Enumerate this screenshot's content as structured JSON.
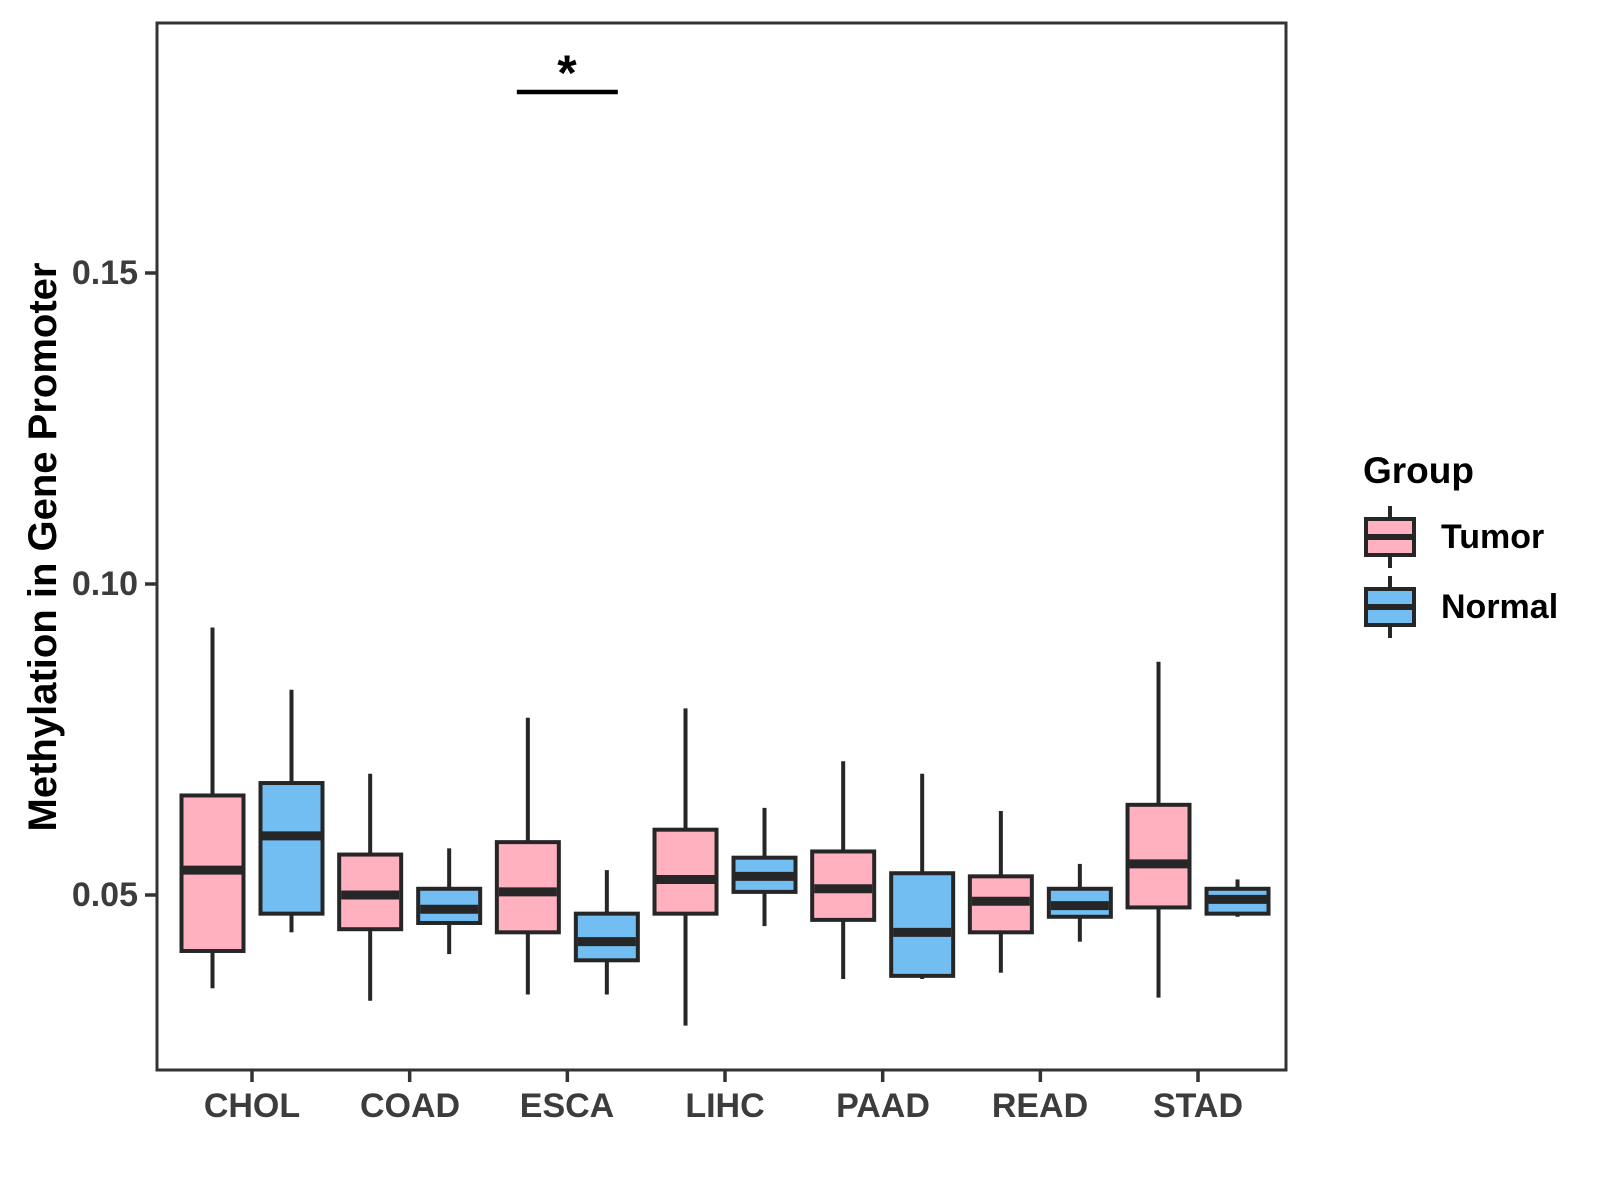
{
  "chart_data": {
    "type": "boxplot",
    "title": "",
    "xlabel": "",
    "ylabel": "Methylation in Gene Promoter",
    "categories": [
      "CHOL",
      "COAD",
      "ESCA",
      "LIHC",
      "PAAD",
      "READ",
      "STAD"
    ],
    "y_tick_labels": [
      "0.15",
      "0.10",
      "0.05"
    ],
    "y_tick_values": [
      0.15,
      0.1,
      0.05
    ],
    "ylim": [
      0.021,
      0.19
    ],
    "grid": false,
    "legend": {
      "title": "Group",
      "position": "right"
    },
    "groups": [
      {
        "name": "Tumor",
        "fill": "#FFB1C0"
      },
      {
        "name": "Normal",
        "fill": "#72BDF2"
      }
    ],
    "series": [
      {
        "name": "Tumor",
        "boxes": [
          {
            "category": "CHOL",
            "whislo": 0.035,
            "q1": 0.041,
            "med": 0.054,
            "q3": 0.066,
            "whishi": 0.093
          },
          {
            "category": "COAD",
            "whislo": 0.033,
            "q1": 0.0445,
            "med": 0.05,
            "q3": 0.0565,
            "whishi": 0.0695
          },
          {
            "category": "ESCA",
            "whislo": 0.034,
            "q1": 0.044,
            "med": 0.0505,
            "q3": 0.0585,
            "whishi": 0.0785
          },
          {
            "category": "LIHC",
            "whislo": 0.029,
            "q1": 0.047,
            "med": 0.0525,
            "q3": 0.0605,
            "whishi": 0.08
          },
          {
            "category": "PAAD",
            "whislo": 0.0365,
            "q1": 0.046,
            "med": 0.051,
            "q3": 0.057,
            "whishi": 0.0715
          },
          {
            "category": "READ",
            "whislo": 0.0375,
            "q1": 0.044,
            "med": 0.049,
            "q3": 0.053,
            "whishi": 0.0635
          },
          {
            "category": "STAD",
            "whislo": 0.0335,
            "q1": 0.048,
            "med": 0.055,
            "q3": 0.0645,
            "whishi": 0.0875
          }
        ]
      },
      {
        "name": "Normal",
        "boxes": [
          {
            "category": "CHOL",
            "whislo": 0.044,
            "q1": 0.047,
            "med": 0.0595,
            "q3": 0.068,
            "whishi": 0.083
          },
          {
            "category": "COAD",
            "whislo": 0.0405,
            "q1": 0.0455,
            "med": 0.0477,
            "q3": 0.051,
            "whishi": 0.0575
          },
          {
            "category": "ESCA",
            "whislo": 0.034,
            "q1": 0.0395,
            "med": 0.0425,
            "q3": 0.047,
            "whishi": 0.054
          },
          {
            "category": "LIHC",
            "whislo": 0.045,
            "q1": 0.0505,
            "med": 0.053,
            "q3": 0.056,
            "whishi": 0.064
          },
          {
            "category": "PAAD",
            "whislo": 0.0365,
            "q1": 0.037,
            "med": 0.044,
            "q3": 0.0535,
            "whishi": 0.0695
          },
          {
            "category": "READ",
            "whislo": 0.0425,
            "q1": 0.0465,
            "med": 0.0483,
            "q3": 0.051,
            "whishi": 0.055
          },
          {
            "category": "STAD",
            "whislo": 0.0465,
            "q1": 0.047,
            "med": 0.0493,
            "q3": 0.051,
            "whishi": 0.0525
          }
        ]
      }
    ],
    "significance": {
      "label": "*",
      "category": "ESCA",
      "between": [
        "Tumor",
        "Normal"
      ]
    },
    "colors": {
      "box_stroke": "#262626",
      "axis_text": "#3C3C3C",
      "axis_line": "#333333",
      "title_text": "#000000"
    }
  }
}
